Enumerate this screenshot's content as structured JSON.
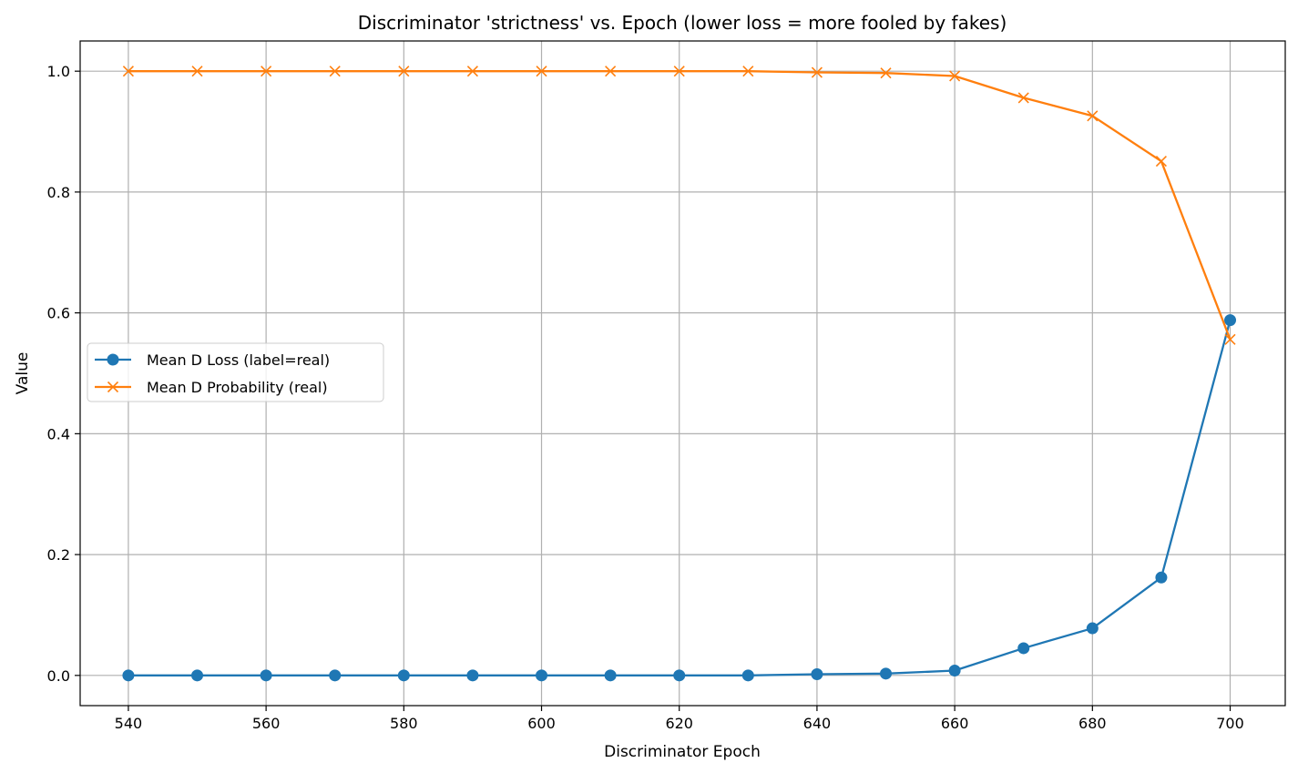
{
  "chart_data": {
    "type": "line",
    "title": "Discriminator 'strictness' vs. Epoch (lower loss = more fooled by fakes)",
    "xlabel": "Discriminator Epoch",
    "ylabel": "Value",
    "x": [
      540,
      550,
      560,
      570,
      580,
      590,
      600,
      610,
      620,
      630,
      640,
      650,
      660,
      670,
      680,
      690,
      700
    ],
    "xlim": [
      533,
      708
    ],
    "ylim": [
      -0.05,
      1.05
    ],
    "xticks": [
      540,
      560,
      580,
      600,
      620,
      640,
      660,
      680,
      700
    ],
    "yticks": [
      0.0,
      0.2,
      0.4,
      0.6,
      0.8,
      1.0
    ],
    "xtick_labels": [
      "540",
      "560",
      "580",
      "600",
      "620",
      "640",
      "660",
      "680",
      "700"
    ],
    "ytick_labels": [
      "0.0",
      "0.2",
      "0.4",
      "0.6",
      "0.8",
      "1.0"
    ],
    "grid": true,
    "legend_position": "center-left",
    "series": [
      {
        "name": "Mean D Loss (label=real)",
        "color": "#1f77b4",
        "marker": "circle",
        "values": [
          0.0,
          0.0,
          0.0,
          0.0,
          0.0,
          0.0,
          0.0,
          0.0,
          0.0,
          0.0,
          0.002,
          0.003,
          0.008,
          0.045,
          0.078,
          0.162,
          0.588
        ]
      },
      {
        "name": "Mean D Probability (real)",
        "color": "#ff7f0e",
        "marker": "x",
        "values": [
          1.0,
          1.0,
          1.0,
          1.0,
          1.0,
          1.0,
          1.0,
          1.0,
          1.0,
          1.0,
          0.998,
          0.997,
          0.992,
          0.956,
          0.926,
          0.851,
          0.556
        ]
      }
    ]
  }
}
